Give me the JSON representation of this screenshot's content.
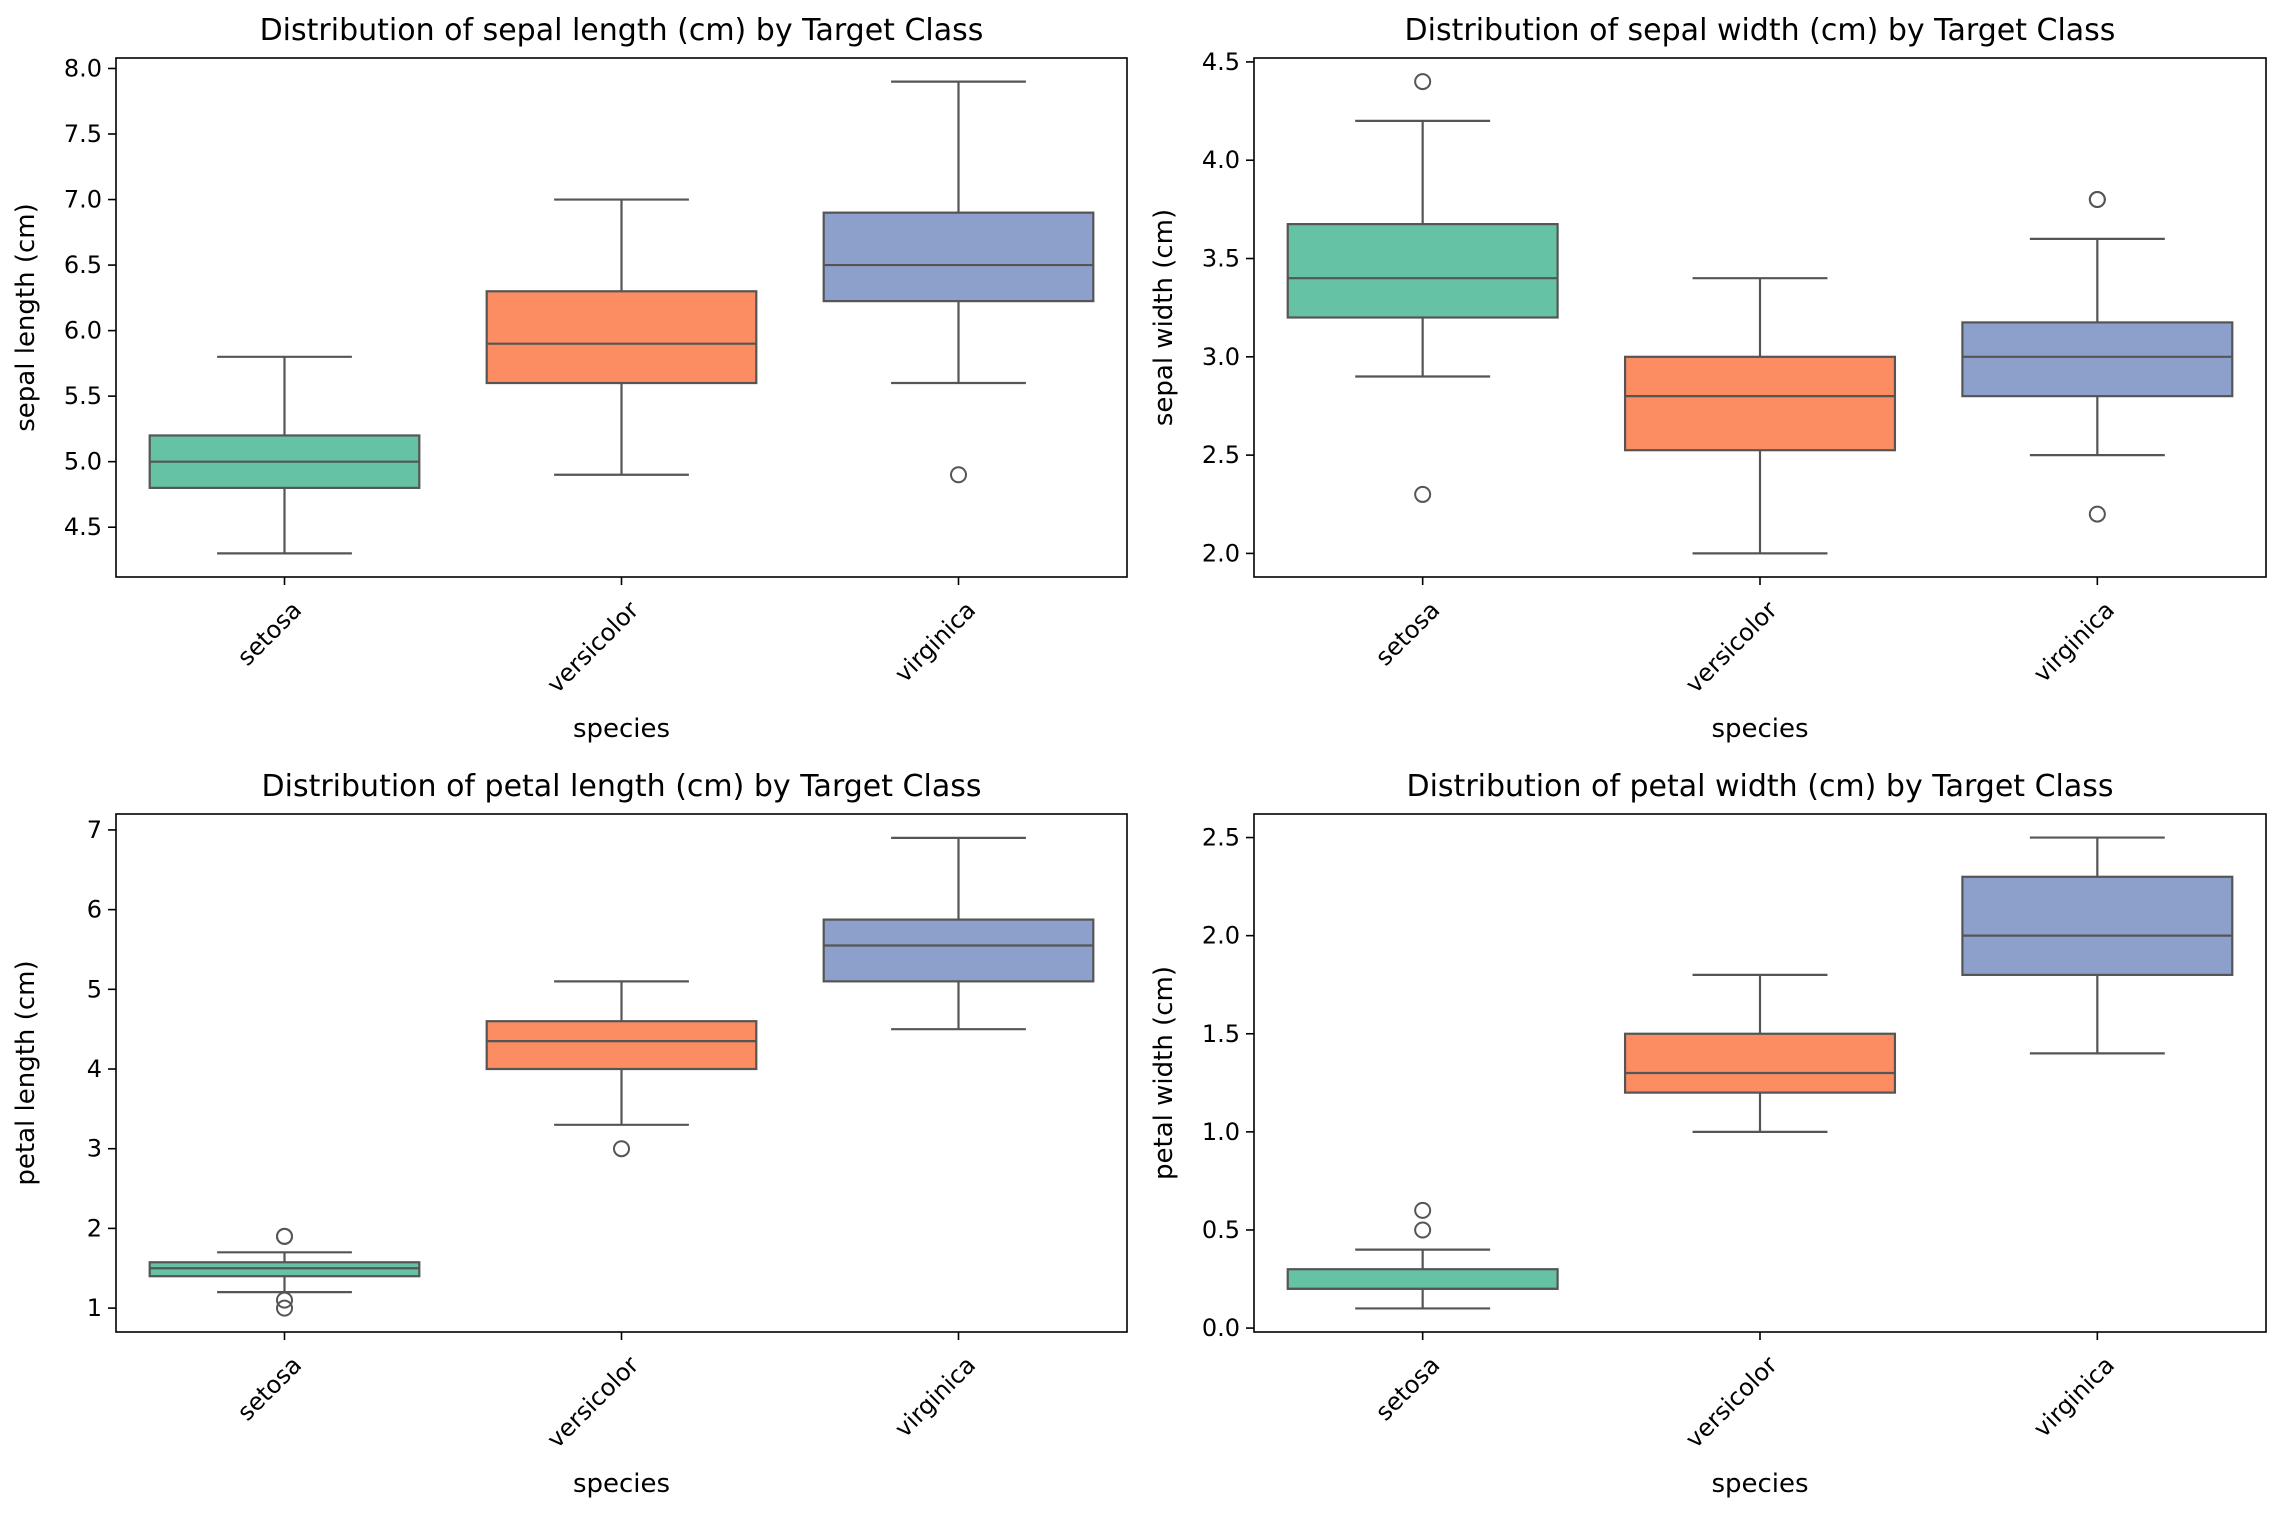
{
  "colors": {
    "setosa": "#66c2a5",
    "versicolor": "#fc8d62",
    "virginica": "#8da0cb",
    "line": "#555555",
    "axes": "#000000"
  },
  "chart_data": [
    {
      "type": "box",
      "title": "Distribution of sepal length (cm) by Target Class",
      "xlabel": "species",
      "ylabel": "sepal length (cm)",
      "categories": [
        "setosa",
        "versicolor",
        "virginica"
      ],
      "ylim": [
        4.12,
        8.08
      ],
      "yticks": [
        "4.5",
        "5.0",
        "5.5",
        "6.0",
        "6.5",
        "7.0",
        "7.5",
        "8.0"
      ],
      "boxes": [
        {
          "whislo": 4.3,
          "q1": 4.8,
          "med": 5.0,
          "q3": 5.2,
          "whishi": 5.8,
          "fliers": []
        },
        {
          "whislo": 4.9,
          "q1": 5.6,
          "med": 5.9,
          "q3": 6.3,
          "whishi": 7.0,
          "fliers": []
        },
        {
          "whislo": 5.6,
          "q1": 6.225,
          "med": 6.5,
          "q3": 6.9,
          "whishi": 7.9,
          "fliers": [
            4.9
          ]
        }
      ]
    },
    {
      "type": "box",
      "title": "Distribution of sepal width (cm) by Target Class",
      "xlabel": "species",
      "ylabel": "sepal width (cm)",
      "categories": [
        "setosa",
        "versicolor",
        "virginica"
      ],
      "ylim": [
        1.88,
        4.52
      ],
      "yticks": [
        "2.0",
        "2.5",
        "3.0",
        "3.5",
        "4.0",
        "4.5"
      ],
      "boxes": [
        {
          "whislo": 2.9,
          "q1": 3.2,
          "med": 3.4,
          "q3": 3.675,
          "whishi": 4.2,
          "fliers": [
            4.4,
            2.3
          ]
        },
        {
          "whislo": 2.0,
          "q1": 2.525,
          "med": 2.8,
          "q3": 3.0,
          "whishi": 3.4,
          "fliers": []
        },
        {
          "whislo": 2.5,
          "q1": 2.8,
          "med": 3.0,
          "q3": 3.175,
          "whishi": 3.6,
          "fliers": [
            3.8,
            3.8,
            2.2
          ]
        }
      ]
    },
    {
      "type": "box",
      "title": "Distribution of petal length (cm) by Target Class",
      "xlabel": "species",
      "ylabel": "petal length (cm)",
      "categories": [
        "setosa",
        "versicolor",
        "virginica"
      ],
      "ylim": [
        0.7,
        7.2
      ],
      "yticks": [
        "1",
        "2",
        "3",
        "4",
        "5",
        "6",
        "7"
      ],
      "boxes": [
        {
          "whislo": 1.2,
          "q1": 1.4,
          "med": 1.5,
          "q3": 1.575,
          "whishi": 1.7,
          "fliers": [
            1.9,
            1.9,
            1.1,
            1.0
          ]
        },
        {
          "whislo": 3.3,
          "q1": 4.0,
          "med": 4.35,
          "q3": 4.6,
          "whishi": 5.1,
          "fliers": [
            3.0
          ]
        },
        {
          "whislo": 4.5,
          "q1": 5.1,
          "med": 5.55,
          "q3": 5.875,
          "whishi": 6.9,
          "fliers": []
        }
      ]
    },
    {
      "type": "box",
      "title": "Distribution of petal width (cm) by Target Class",
      "xlabel": "species",
      "ylabel": "petal width (cm)",
      "categories": [
        "setosa",
        "versicolor",
        "virginica"
      ],
      "ylim": [
        -0.02,
        2.62
      ],
      "yticks": [
        "0.0",
        "0.5",
        "1.0",
        "1.5",
        "2.0",
        "2.5"
      ],
      "boxes": [
        {
          "whislo": 0.1,
          "q1": 0.2,
          "med": 0.2,
          "q3": 0.3,
          "whishi": 0.4,
          "fliers": [
            0.5,
            0.6
          ]
        },
        {
          "whislo": 1.0,
          "q1": 1.2,
          "med": 1.3,
          "q3": 1.5,
          "whishi": 1.8,
          "fliers": []
        },
        {
          "whislo": 1.4,
          "q1": 1.8,
          "med": 2.0,
          "q3": 2.3,
          "whishi": 2.5,
          "fliers": []
        }
      ]
    }
  ]
}
